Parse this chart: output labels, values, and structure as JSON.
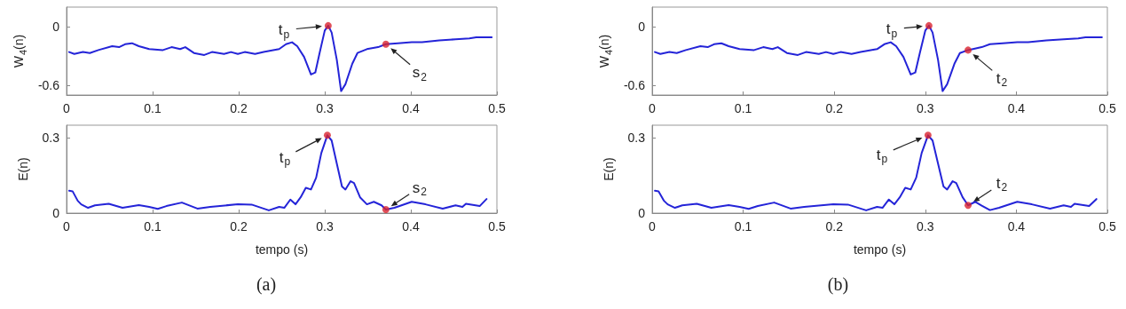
{
  "chart_data": [
    {
      "type": "line",
      "ylabel": "W$_{4}$(n)",
      "xlim": [
        0,
        0.5
      ],
      "xticks": [
        0,
        0.1,
        0.2,
        0.3,
        0.4,
        0.5
      ],
      "ylim": [
        -0.7,
        0.2
      ],
      "yticks": [
        -0.6,
        0
      ],
      "grid": false,
      "marker": "none",
      "series": [
        {
          "color": "#2424d8",
          "x": [
            0.003,
            0.009,
            0.019,
            0.027,
            0.037,
            0.053,
            0.061,
            0.068,
            0.076,
            0.084,
            0.096,
            0.112,
            0.122,
            0.132,
            0.138,
            0.148,
            0.16,
            0.169,
            0.183,
            0.191,
            0.199,
            0.207,
            0.219,
            0.229,
            0.247,
            0.255,
            0.262,
            0.268,
            0.276,
            0.284,
            0.289,
            0.294,
            0.3,
            0.304,
            0.308,
            0.314,
            0.319,
            0.324,
            0.332,
            0.338,
            0.349,
            0.362,
            0.371,
            0.385,
            0.401,
            0.413,
            0.433,
            0.452,
            0.468,
            0.476,
            0.494
          ],
          "values": [
            -0.26,
            -0.28,
            -0.26,
            -0.27,
            -0.24,
            -0.2,
            -0.21,
            -0.18,
            -0.17,
            -0.2,
            -0.23,
            -0.24,
            -0.21,
            -0.23,
            -0.21,
            -0.27,
            -0.29,
            -0.26,
            -0.28,
            -0.26,
            -0.28,
            -0.26,
            -0.28,
            -0.26,
            -0.23,
            -0.18,
            -0.16,
            -0.2,
            -0.31,
            -0.49,
            -0.47,
            -0.27,
            -0.04,
            0.01,
            -0.06,
            -0.34,
            -0.66,
            -0.59,
            -0.38,
            -0.27,
            -0.23,
            -0.21,
            -0.18,
            -0.17,
            -0.16,
            -0.16,
            -0.14,
            -0.13,
            -0.12,
            -0.11,
            -0.11
          ]
        },
        {
          "type": "scatter",
          "marker": "circle",
          "color": "#d9232e",
          "x": [
            0.304,
            0.371
          ],
          "values": [
            0.01,
            -0.18
          ]
        }
      ],
      "annotations": [
        {
          "text": "t$_{p}$",
          "x": 0.304,
          "y": 0.01
        },
        {
          "text": "s$_{2}$",
          "x": 0.371,
          "y": -0.18
        }
      ]
    },
    {
      "type": "line",
      "ylabel": "E(n)",
      "xlabel": "tempo (s)",
      "xlim": [
        0,
        0.5
      ],
      "xticks": [
        0,
        0.1,
        0.2,
        0.3,
        0.4,
        0.5
      ],
      "ylim": [
        0,
        0.35
      ],
      "yticks": [
        0,
        0.3
      ],
      "grid": false,
      "marker": "none",
      "series": [
        {
          "color": "#2424d8",
          "x": [
            0.003,
            0.007,
            0.013,
            0.017,
            0.025,
            0.033,
            0.049,
            0.065,
            0.084,
            0.096,
            0.106,
            0.116,
            0.134,
            0.152,
            0.167,
            0.199,
            0.215,
            0.235,
            0.247,
            0.253,
            0.26,
            0.266,
            0.272,
            0.278,
            0.284,
            0.29,
            0.296,
            0.303,
            0.308,
            0.314,
            0.32,
            0.324,
            0.33,
            0.334,
            0.341,
            0.349,
            0.357,
            0.366,
            0.371,
            0.381,
            0.401,
            0.417,
            0.437,
            0.452,
            0.46,
            0.464,
            0.48,
            0.488
          ],
          "values": [
            0.089,
            0.087,
            0.049,
            0.035,
            0.021,
            0.031,
            0.037,
            0.021,
            0.032,
            0.025,
            0.017,
            0.028,
            0.042,
            0.018,
            0.025,
            0.035,
            0.034,
            0.011,
            0.025,
            0.021,
            0.054,
            0.035,
            0.063,
            0.101,
            0.094,
            0.141,
            0.239,
            0.31,
            0.289,
            0.197,
            0.106,
            0.094,
            0.127,
            0.12,
            0.063,
            0.035,
            0.045,
            0.031,
            0.014,
            0.021,
            0.045,
            0.035,
            0.018,
            0.031,
            0.025,
            0.037,
            0.028,
            0.056
          ]
        },
        {
          "type": "scatter",
          "marker": "circle",
          "color": "#d9232e",
          "x": [
            0.303,
            0.371
          ],
          "values": [
            0.31,
            0.014
          ]
        }
      ],
      "annotations": [
        {
          "text": "t$_{p}$",
          "x": 0.303,
          "y": 0.31
        },
        {
          "text": "s$_{2}$",
          "x": 0.371,
          "y": 0.014
        },
        "(a)"
      ]
    },
    {
      "type": "line",
      "ylabel": "W$_{4}$(n)",
      "xlim": [
        0,
        0.5
      ],
      "xticks": [
        0,
        0.1,
        0.2,
        0.3,
        0.4,
        0.5
      ],
      "ylim": [
        -0.7,
        0.2
      ],
      "yticks": [
        -0.6,
        0
      ],
      "grid": false,
      "marker": "none",
      "series": [
        {
          "color": "#2424d8",
          "x": [
            0.003,
            0.009,
            0.019,
            0.027,
            0.037,
            0.053,
            0.061,
            0.068,
            0.076,
            0.084,
            0.096,
            0.112,
            0.122,
            0.132,
            0.138,
            0.148,
            0.16,
            0.169,
            0.183,
            0.191,
            0.199,
            0.207,
            0.219,
            0.229,
            0.247,
            0.255,
            0.262,
            0.268,
            0.276,
            0.284,
            0.289,
            0.294,
            0.3,
            0.304,
            0.308,
            0.314,
            0.319,
            0.324,
            0.332,
            0.338,
            0.347,
            0.362,
            0.371,
            0.385,
            0.401,
            0.413,
            0.433,
            0.452,
            0.468,
            0.476,
            0.494
          ],
          "values": [
            -0.26,
            -0.28,
            -0.26,
            -0.27,
            -0.24,
            -0.2,
            -0.21,
            -0.18,
            -0.17,
            -0.2,
            -0.23,
            -0.24,
            -0.21,
            -0.23,
            -0.21,
            -0.27,
            -0.29,
            -0.26,
            -0.28,
            -0.26,
            -0.28,
            -0.26,
            -0.28,
            -0.26,
            -0.23,
            -0.18,
            -0.16,
            -0.2,
            -0.31,
            -0.49,
            -0.47,
            -0.27,
            -0.04,
            0.01,
            -0.06,
            -0.34,
            -0.66,
            -0.59,
            -0.38,
            -0.27,
            -0.24,
            -0.21,
            -0.18,
            -0.17,
            -0.16,
            -0.16,
            -0.14,
            -0.13,
            -0.12,
            -0.11,
            -0.11
          ]
        },
        {
          "type": "scatter",
          "marker": "circle",
          "color": "#d9232e",
          "x": [
            0.304,
            0.347
          ],
          "values": [
            0.01,
            -0.24
          ]
        }
      ],
      "annotations": [
        {
          "text": "t$_{p}$",
          "x": 0.304,
          "y": 0.01
        },
        {
          "text": "t$_{2}$",
          "x": 0.347,
          "y": -0.24
        }
      ]
    },
    {
      "type": "line",
      "ylabel": "E(n)",
      "xlabel": "tempo (s)",
      "xlim": [
        0,
        0.5
      ],
      "xticks": [
        0,
        0.1,
        0.2,
        0.3,
        0.4,
        0.5
      ],
      "ylim": [
        0,
        0.35
      ],
      "yticks": [
        0,
        0.3
      ],
      "grid": false,
      "marker": "none",
      "series": [
        {
          "color": "#2424d8",
          "x": [
            0.003,
            0.007,
            0.013,
            0.017,
            0.025,
            0.033,
            0.049,
            0.065,
            0.084,
            0.096,
            0.106,
            0.116,
            0.134,
            0.152,
            0.167,
            0.199,
            0.215,
            0.235,
            0.247,
            0.253,
            0.26,
            0.266,
            0.272,
            0.278,
            0.284,
            0.29,
            0.296,
            0.303,
            0.308,
            0.314,
            0.32,
            0.324,
            0.33,
            0.334,
            0.341,
            0.347,
            0.355,
            0.362,
            0.371,
            0.381,
            0.401,
            0.417,
            0.437,
            0.452,
            0.46,
            0.464,
            0.48,
            0.488
          ],
          "values": [
            0.089,
            0.087,
            0.049,
            0.035,
            0.021,
            0.031,
            0.037,
            0.021,
            0.032,
            0.025,
            0.017,
            0.028,
            0.042,
            0.018,
            0.025,
            0.035,
            0.034,
            0.011,
            0.025,
            0.021,
            0.054,
            0.035,
            0.063,
            0.101,
            0.094,
            0.141,
            0.239,
            0.31,
            0.289,
            0.197,
            0.106,
            0.094,
            0.127,
            0.12,
            0.063,
            0.031,
            0.045,
            0.03,
            0.012,
            0.021,
            0.045,
            0.035,
            0.018,
            0.031,
            0.025,
            0.037,
            0.028,
            0.056
          ]
        },
        {
          "type": "scatter",
          "marker": "circle",
          "color": "#d9232e",
          "x": [
            0.303,
            0.347
          ],
          "values": [
            0.31,
            0.031
          ]
        }
      ],
      "annotations": [
        {
          "text": "t$_{p}$",
          "x": 0.303,
          "y": 0.31
        },
        {
          "text": "t$_{2}$",
          "x": 0.347,
          "y": 0.031
        },
        "(b)"
      ]
    }
  ]
}
